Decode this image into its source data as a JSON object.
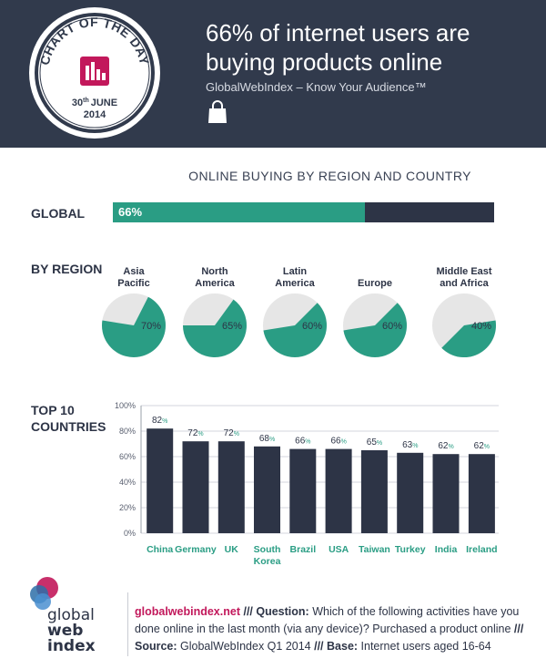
{
  "header": {
    "badge_title": "CHART OF THE DAY",
    "badge_date": "30th JUNE",
    "badge_date_day": "30",
    "badge_date_suffix": "th",
    "badge_date_month": "JUNE",
    "badge_year": "2014",
    "headline_line1": "66% of internet users are",
    "headline_line2": "buying products online",
    "tagline": "GlobalWebIndex – Know Your Audience™",
    "bag_icon": "shopping-bag-icon"
  },
  "section_title": "ONLINE BUYING BY REGION AND COUNTRY",
  "global": {
    "label": "GLOBAL",
    "value_label": "66%"
  },
  "regions_label": "BY REGION",
  "countries_label_line1": "TOP 10",
  "countries_label_line2": "COUNTRIES",
  "colors": {
    "header": "#313a4c",
    "accent": "#2a9d84",
    "dark": "#2d3446",
    "pie_rest": "#e6e6e6",
    "link": "#c2185b"
  },
  "chart_data": [
    {
      "type": "bar",
      "title": "ONLINE BUYING BY REGION AND COUNTRY",
      "categories": [
        "GLOBAL"
      ],
      "values": [
        66
      ],
      "xlim": [
        0,
        100
      ],
      "data_labels": [
        "66%"
      ]
    },
    {
      "type": "pie",
      "categories": [
        {
          "line1": "Asia",
          "line2": "Pacific"
        },
        {
          "line1": "North",
          "line2": "America"
        },
        {
          "line1": "Latin",
          "line2": "America"
        },
        {
          "line1": "",
          "line2": "Europe"
        },
        {
          "line1": "Middle East",
          "line2": "and Africa"
        }
      ],
      "values": [
        70,
        65,
        60,
        60,
        40
      ],
      "data_labels": [
        "70%",
        "65%",
        "60%",
        "60%",
        "40%"
      ]
    },
    {
      "type": "bar",
      "categories": [
        {
          "line1": "China",
          "line2": ""
        },
        {
          "line1": "Germany",
          "line2": ""
        },
        {
          "line1": "UK",
          "line2": ""
        },
        {
          "line1": "South",
          "line2": "Korea"
        },
        {
          "line1": "Brazil",
          "line2": ""
        },
        {
          "line1": "USA",
          "line2": ""
        },
        {
          "line1": "Taiwan",
          "line2": ""
        },
        {
          "line1": "Turkey",
          "line2": ""
        },
        {
          "line1": "India",
          "line2": ""
        },
        {
          "line1": "Ireland",
          "line2": ""
        }
      ],
      "values": [
        82,
        72,
        72,
        68,
        66,
        66,
        65,
        63,
        62,
        62
      ],
      "data_labels": [
        "82",
        "72",
        "72",
        "68",
        "66",
        "66",
        "65",
        "63",
        "62",
        "62"
      ],
      "value_suffix": "%",
      "ylim": [
        0,
        100
      ],
      "yticks": [
        "0%",
        "20%",
        "40%",
        "60%",
        "80%",
        "100%"
      ],
      "grid": true
    }
  ],
  "footer": {
    "logo_line1": "global",
    "logo_line2": "web",
    "logo_line3": "index",
    "link": "globalwebindex.net",
    "sep1": " /// ",
    "question_label": "Question:",
    "question_text": " Which of the following activities have you done online in the last month (via any device)? Purchased a product online",
    "sep2": " /// ",
    "source_label": "Source:",
    "source_text": " GlobalWebIndex Q1 2014 ",
    "sep3": "/// ",
    "base_label": "Base:",
    "base_text": " Internet users aged 16-64"
  }
}
